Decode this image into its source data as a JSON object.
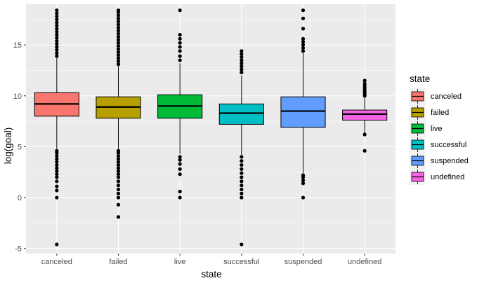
{
  "chart_data": {
    "type": "boxplot",
    "xlabel": "state",
    "ylabel": "log(goal)",
    "categories": [
      "canceled",
      "failed",
      "live",
      "successful",
      "suspended",
      "undefined"
    ],
    "ylim": [
      -5.5,
      19
    ],
    "y_ticks": [
      -5,
      0,
      5,
      10,
      15
    ],
    "y_tick_labels": [
      "-5",
      "0",
      "5",
      "10",
      "15"
    ],
    "legend": {
      "title": "state",
      "position": "right"
    },
    "colors": [
      "#F8766D",
      "#B79F00",
      "#00BA38",
      "#00BFC4",
      "#619CFF",
      "#F564E3"
    ],
    "panel_background": "#EBEBEB",
    "grid": true,
    "boxes": [
      {
        "category": "canceled",
        "q1": 8.0,
        "median": 9.2,
        "q3": 10.3,
        "whisker_low": 4.8,
        "whisker_high": 13.7,
        "outliers": [
          -4.6,
          0.0,
          0.7,
          1.1,
          1.6,
          2.0,
          2.3,
          2.6,
          2.9,
          3.2,
          3.5,
          3.8,
          4.1,
          4.4,
          4.6,
          13.9,
          14.2,
          14.5,
          14.8,
          15.1,
          15.4,
          15.7,
          16.0,
          16.3,
          16.6,
          16.9,
          17.2,
          17.5,
          17.8,
          18.1,
          18.4
        ]
      },
      {
        "category": "failed",
        "q1": 7.8,
        "median": 8.9,
        "q3": 9.9,
        "whisker_low": 4.8,
        "whisker_high": 12.9,
        "outliers": [
          -1.9,
          -0.7,
          0.0,
          0.4,
          0.8,
          1.2,
          1.6,
          2.0,
          2.3,
          2.6,
          2.9,
          3.2,
          3.5,
          3.8,
          4.1,
          4.4,
          4.6,
          13.1,
          13.4,
          13.7,
          14.0,
          14.3,
          14.6,
          14.9,
          15.2,
          15.5,
          15.8,
          16.1,
          16.4,
          16.7,
          17.0,
          17.3,
          17.6,
          17.9,
          18.2,
          18.4
        ]
      },
      {
        "category": "live",
        "q1": 7.8,
        "median": 9.0,
        "q3": 10.1,
        "whisker_low": 4.3,
        "whisker_high": 13.2,
        "outliers": [
          0.0,
          0.6,
          2.3,
          2.8,
          3.3,
          3.7,
          4.0,
          13.5,
          13.9,
          14.4,
          14.8,
          15.2,
          15.6,
          16.0,
          18.4
        ]
      },
      {
        "category": "successful",
        "q1": 7.2,
        "median": 8.3,
        "q3": 9.2,
        "whisker_low": 4.2,
        "whisker_high": 12.0,
        "outliers": [
          -4.6,
          0.0,
          0.4,
          0.8,
          1.2,
          1.6,
          2.0,
          2.4,
          2.8,
          3.2,
          3.6,
          4.0,
          12.3,
          12.6,
          12.9,
          13.2,
          13.5,
          13.8,
          14.1,
          14.4
        ]
      },
      {
        "category": "suspended",
        "q1": 6.9,
        "median": 8.5,
        "q3": 9.9,
        "whisker_low": 2.4,
        "whisker_high": 14.2,
        "outliers": [
          0.0,
          1.4,
          1.7,
          2.0,
          2.2,
          14.4,
          14.7,
          15.0,
          15.3,
          15.6,
          16.6,
          17.6,
          18.4
        ]
      },
      {
        "category": "undefined",
        "q1": 7.6,
        "median": 8.2,
        "q3": 8.6,
        "whisker_low": 6.2,
        "whisker_high": 9.8,
        "outliers": [
          4.6,
          6.2,
          10.0,
          10.2,
          10.4,
          10.6,
          10.8,
          11.0,
          11.2,
          11.5
        ]
      }
    ]
  }
}
